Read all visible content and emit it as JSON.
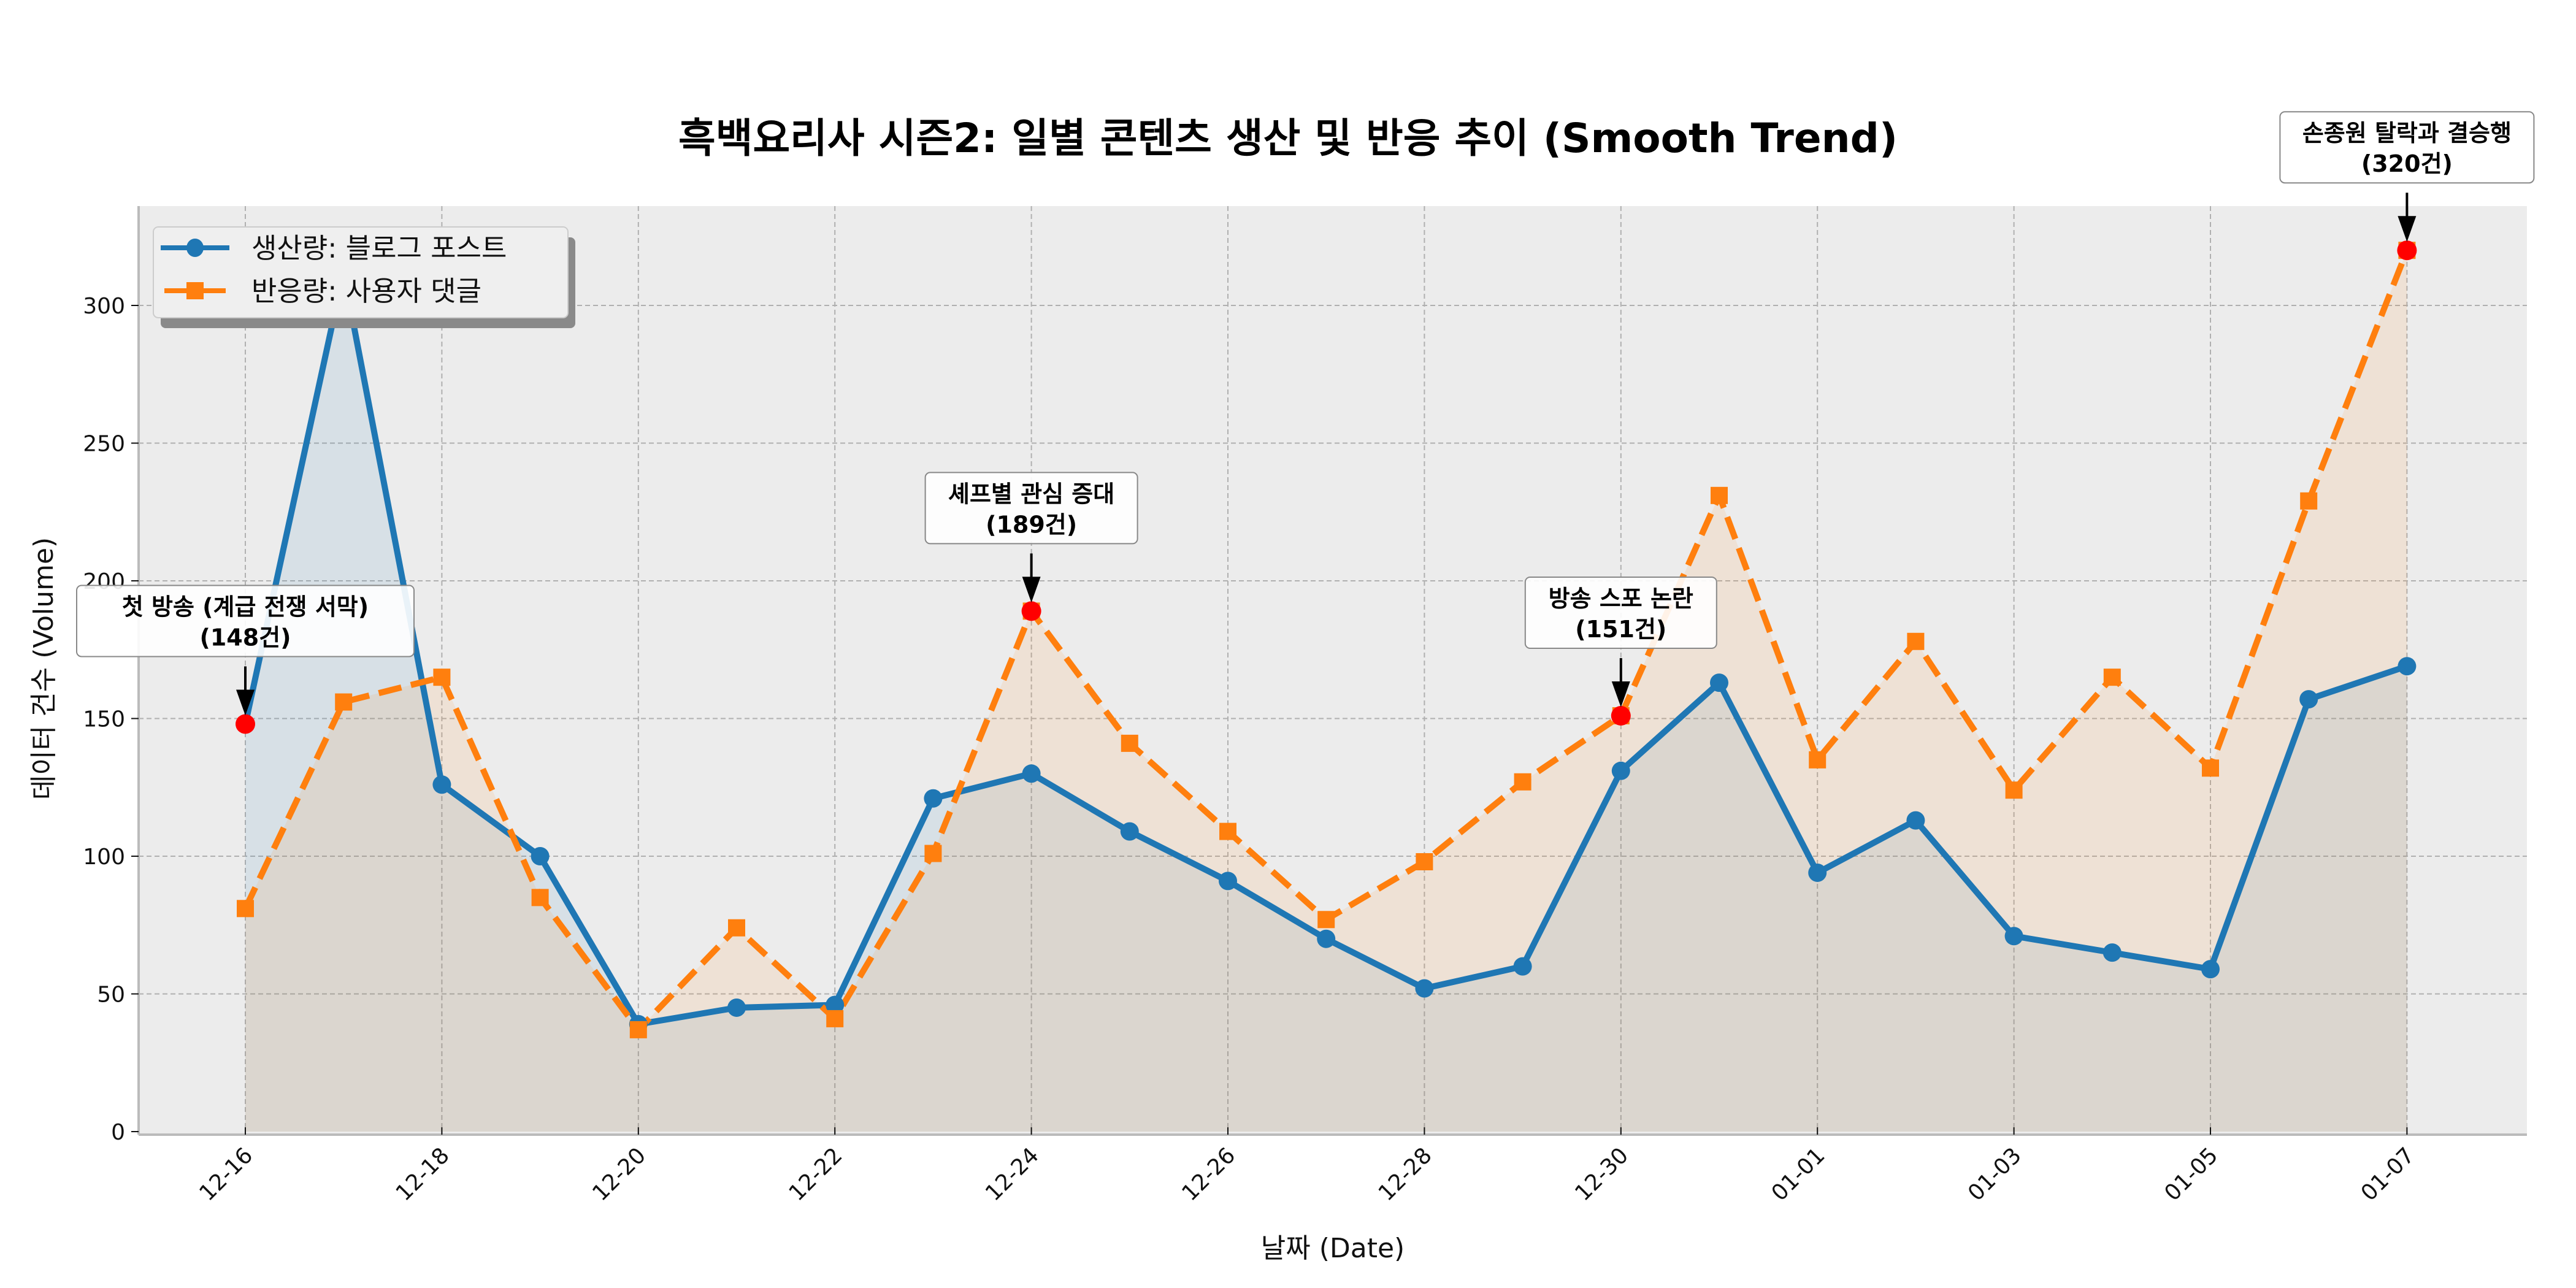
{
  "chart_data": {
    "type": "line",
    "title": "흑백요리사 시즌2: 일별 콘텐츠 생산 및 반응 추이 (Smooth Trend)",
    "xlabel": "날짜 (Date)",
    "ylabel": "데이터 건수 (Volume)",
    "ylim": [
      0,
      338
    ],
    "yticks": [
      0,
      50,
      100,
      150,
      200,
      250,
      300
    ],
    "ytick_labels": [
      "0",
      "50",
      "100",
      "150",
      "200",
      "250",
      "300"
    ],
    "grid": true,
    "legend_position": "top-left",
    "x": [
      "12-16",
      "12-17",
      "12-18",
      "12-19",
      "12-20",
      "12-21",
      "12-22",
      "12-23",
      "12-24",
      "12-25",
      "12-26",
      "12-27",
      "12-28",
      "12-29",
      "12-30",
      "12-31",
      "01-01",
      "01-02",
      "01-03",
      "01-04",
      "01-05",
      "01-06",
      "01-07"
    ],
    "xtick_labels": [
      "12-16",
      "12-18",
      "12-20",
      "12-22",
      "12-24",
      "12-26",
      "12-28",
      "12-30",
      "01-01",
      "01-03",
      "01-05",
      "01-07"
    ],
    "series": [
      {
        "name": "생산량: 블로그 포스트",
        "color": "#1f77b4",
        "fill_color": "#1f77b4",
        "line_style": "solid",
        "marker": "circle",
        "values": [
          148,
          312,
          126,
          100,
          39,
          45,
          46,
          121,
          130,
          109,
          91,
          70,
          52,
          60,
          131,
          163,
          94,
          113,
          71,
          65,
          59,
          157,
          169
        ]
      },
      {
        "name": "반응량: 사용자 댓글",
        "color": "#ff7f0e",
        "fill_color": "#ff7f0e",
        "line_style": "dashed",
        "marker": "square",
        "values": [
          81,
          156,
          165,
          85,
          37,
          74,
          41,
          101,
          189,
          141,
          109,
          77,
          98,
          127,
          151,
          231,
          135,
          178,
          124,
          165,
          132,
          229,
          320
        ]
      }
    ],
    "annotations": [
      {
        "x": "12-16",
        "value": 148,
        "line1": "첫 방송 (계급 전쟁 서막)",
        "line2": "(148건)"
      },
      {
        "x": "12-24",
        "value": 189,
        "line1": "셰프별 관심 증대",
        "line2": "(189건)"
      },
      {
        "x": "12-30",
        "value": 151,
        "line1": "방송 스포 논란",
        "line2": "(151건)"
      },
      {
        "x": "01-07",
        "value": 320,
        "line1": "손종원 탈락과 결승행",
        "line2": "(320건)"
      }
    ],
    "highlight_color": "#ff0000",
    "plot_background": "#ececec"
  }
}
